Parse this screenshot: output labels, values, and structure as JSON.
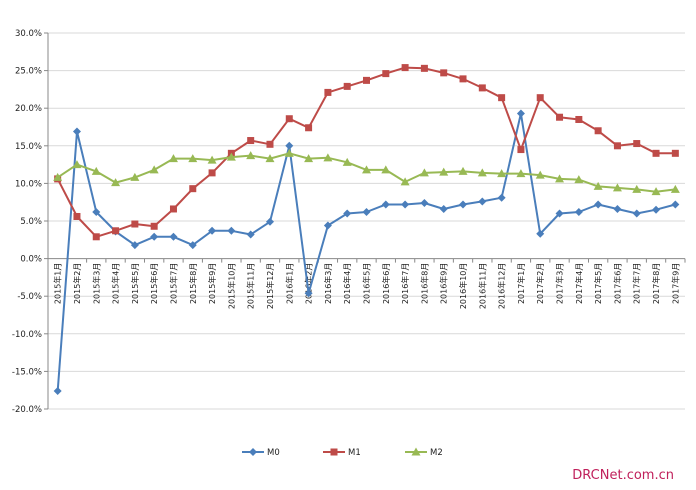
{
  "chart_data": {
    "type": "line",
    "categories": [
      "2015年1月",
      "2015年2月",
      "2015年3月",
      "2015年4月",
      "2015年5月",
      "2015年6月",
      "2015年7月",
      "2015年8月",
      "2015年9月",
      "2015年10月",
      "2015年11月",
      "2015年12月",
      "2016年1月",
      "2016年2月",
      "2016年3月",
      "2016年4月",
      "2016年5月",
      "2016年6月",
      "2016年7月",
      "2016年8月",
      "2016年9月",
      "2016年10月",
      "2016年11月",
      "2016年12月",
      "2017年1月",
      "2017年2月",
      "2017年3月",
      "2017年4月",
      "2017年5月",
      "2017年6月",
      "2017年7月",
      "2017年8月",
      "2017年9月"
    ],
    "series": [
      {
        "name": "M0",
        "color": "#4a7ebb",
        "marker": "diamond",
        "values": [
          -17.6,
          16.9,
          6.2,
          3.6,
          1.8,
          2.9,
          2.9,
          1.8,
          3.7,
          3.7,
          3.2,
          4.9,
          15.0,
          -4.6,
          4.4,
          6.0,
          6.2,
          7.2,
          7.2,
          7.4,
          6.6,
          7.2,
          7.6,
          8.1,
          19.3,
          3.3,
          6.0,
          6.2,
          7.2,
          6.6,
          6.0,
          6.5,
          7.2
        ]
      },
      {
        "name": "M1",
        "color": "#be4b48",
        "marker": "square",
        "values": [
          10.6,
          5.6,
          2.9,
          3.7,
          4.6,
          4.3,
          6.6,
          9.3,
          11.4,
          14.0,
          15.7,
          15.2,
          18.6,
          17.4,
          22.1,
          22.9,
          23.7,
          24.6,
          25.4,
          25.3,
          24.7,
          23.9,
          22.7,
          21.4,
          14.5,
          21.4,
          18.8,
          18.5,
          17.0,
          15.0,
          15.3,
          14.0,
          14.0
        ]
      },
      {
        "name": "M2",
        "color": "#98b954",
        "marker": "triangle",
        "values": [
          10.8,
          12.5,
          11.6,
          10.1,
          10.8,
          11.8,
          13.3,
          13.3,
          13.1,
          13.5,
          13.7,
          13.3,
          14.0,
          13.3,
          13.4,
          12.8,
          11.8,
          11.8,
          10.2,
          11.4,
          11.5,
          11.6,
          11.4,
          11.3,
          11.3,
          11.1,
          10.6,
          10.5,
          9.6,
          9.4,
          9.2,
          8.9,
          9.2
        ]
      }
    ],
    "ylim": [
      -20,
      30
    ],
    "ytick_step": 5,
    "ytick_labels": [
      "-20.0%",
      "-15.0%",
      "-10.0%",
      "-5.0%",
      "0.0%",
      "5.0%",
      "10.0%",
      "15.0%",
      "20.0%",
      "25.0%",
      "30.0%"
    ],
    "grid": "horizontal",
    "legend_position": "bottom-center"
  },
  "watermark": "DRCNet.com.cn"
}
